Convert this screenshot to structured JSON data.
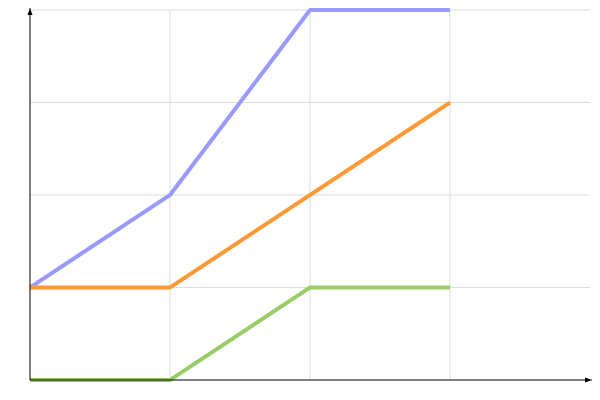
{
  "chart_data": {
    "type": "line",
    "title": "",
    "xlabel": "",
    "ylabel": "",
    "x": [
      0,
      1,
      2,
      3
    ],
    "xlim": [
      0,
      4
    ],
    "ylim": [
      0,
      4
    ],
    "grid": true,
    "series": [
      {
        "color": "#9999ff",
        "values": [
          1,
          2,
          4,
          4
        ]
      },
      {
        "color": "#ff9933",
        "values": [
          1,
          1,
          2,
          3
        ]
      },
      {
        "color": "#99cc66",
        "values": [
          0,
          0,
          1,
          1
        ]
      }
    ]
  }
}
